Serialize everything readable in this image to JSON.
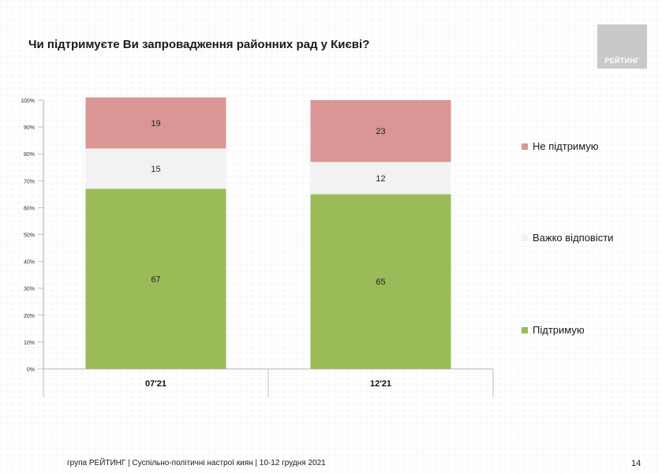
{
  "title": "Чи підтримуєте Ви запровадження районних рад у Києві?",
  "logo": {
    "text": "РЕЙТИНГ"
  },
  "footer": {
    "text": "група РЕЙТИНГ | Суспільно-політичні настрої киян | 10-12 грудня 2021"
  },
  "page_number": "14",
  "chart_data": {
    "type": "bar",
    "stacked": true,
    "categories": [
      "07'21",
      "12'21"
    ],
    "series": [
      {
        "name": "Підтримую",
        "values": [
          67,
          65
        ],
        "color": "#9bbb59"
      },
      {
        "name": "Важко відповісти",
        "values": [
          15,
          12
        ],
        "color": "#f2f2f2"
      },
      {
        "name": "Не підтримую",
        "values": [
          19,
          23
        ],
        "color": "#d99694"
      }
    ],
    "ylim": [
      0,
      100
    ],
    "y_ticks": [
      "0%",
      "10%",
      "20%",
      "30%",
      "40%",
      "50%",
      "60%",
      "70%",
      "80%",
      "90%",
      "100%"
    ],
    "legend_position": "right"
  }
}
